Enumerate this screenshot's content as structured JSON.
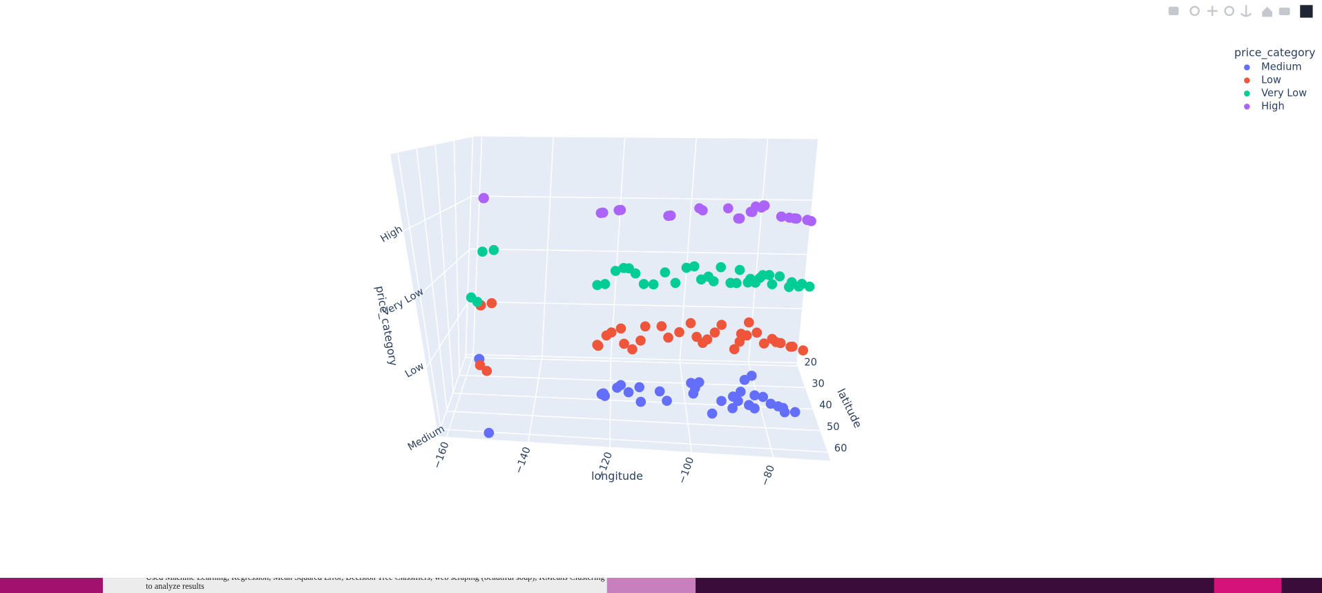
{
  "chart_data": {
    "type": "scatter3d",
    "xaxis_title": "longitude",
    "yaxis_title": "latitude",
    "zaxis_title": "price_category",
    "legend_title": "price_category",
    "xlim": [
      -162,
      -66
    ],
    "xticks": [
      {
        "value": -160,
        "label": "−160"
      },
      {
        "value": -140,
        "label": "−140"
      },
      {
        "value": -120,
        "label": "−120"
      },
      {
        "value": -100,
        "label": "−100"
      },
      {
        "value": -80,
        "label": "−80"
      }
    ],
    "ylim": [
      19,
      64
    ],
    "yticks": [
      20,
      30,
      40,
      50,
      60
    ],
    "zcategories": [
      "Medium",
      "Low",
      "Very Low",
      "High"
    ],
    "series": [
      {
        "name": "Medium",
        "color": "#636efa",
        "x": [
          -157.9,
          -157.8,
          -149.9,
          -122.4,
          -121.9,
          -122.2,
          -121.5,
          -118.2,
          -117.2,
          -115.1,
          -112.1,
          -111.9,
          -104.9,
          -106.6,
          -97.7,
          -96.8,
          -95.4,
          -97.5,
          -93.3,
          -90.2,
          -87.6,
          -86.8,
          -84.4,
          -83.0,
          -81.7,
          -80.2,
          -80.8,
          -78.6,
          -77.0,
          -75.2,
          -74.0,
          -71.1,
          -73.9,
          -82.5,
          -85.7
        ],
        "y": [
          21.3,
          21.4,
          61.2,
          37.8,
          37.3,
          37.5,
          38.6,
          34.1,
          32.7,
          36.2,
          33.4,
          40.8,
          39.7,
          35.1,
          30.3,
          32.8,
          29.8,
          35.5,
          45.0,
          38.6,
          41.9,
          36.2,
          33.7,
          40.0,
          41.5,
          25.8,
          35.2,
          35.8,
          38.9,
          40.0,
          40.7,
          42.4,
          42.7,
          27.9,
          38.3
        ]
      },
      {
        "name": "Low",
        "color": "#EF553B",
        "x": [
          -157.8,
          -157.9,
          -155.1,
          -149.9,
          -147.7,
          -123.0,
          -122.7,
          -121.0,
          -119.8,
          -117.4,
          -116.2,
          -114.0,
          -112.0,
          -110.9,
          -106.5,
          -104.8,
          -101.8,
          -98.5,
          -97.3,
          -95.9,
          -94.6,
          -92.3,
          -90.1,
          -88.0,
          -86.2,
          -85.3,
          -83.9,
          -82.4,
          -81.0,
          -79.9,
          -77.4,
          -76.6,
          -75.5,
          -73.2,
          -72.7,
          -70.3
        ],
        "y": [
          21.3,
          21.4,
          19.7,
          61.2,
          64.8,
          44.9,
          45.5,
          38.7,
          36.7,
          34.0,
          43.6,
          46.9,
          41.2,
          32.2,
          31.8,
          38.8,
          35.2,
          29.4,
          37.7,
          41.3,
          39.1,
          34.7,
          29.9,
          44.5,
          39.8,
          35.0,
          35.9,
          28.0,
          34.0,
          40.4,
          37.5,
          39.3,
          39.8,
          41.8,
          41.7,
          43.7
        ]
      },
      {
        "name": "Very Low",
        "color": "#00cc96",
        "x": [
          -157.8,
          -155.1,
          -149.9,
          -147.7,
          -122.3,
          -120.5,
          -118.9,
          -117.0,
          -115.6,
          -113.6,
          -111.0,
          -108.6,
          -106.0,
          -103.2,
          -100.4,
          -98.3,
          -96.7,
          -94.8,
          -93.6,
          -91.2,
          -89.4,
          -87.9,
          -86.3,
          -85.0,
          -84.1,
          -83.1,
          -81.6,
          -80.6,
          -79.0,
          -78.9,
          -76.3,
          -75.0,
          -73.8,
          -72.5,
          -71.4,
          -69.8
        ],
        "y": [
          21.3,
          19.7,
          61.2,
          64.8,
          47.6,
          46.6,
          35.4,
          32.8,
          33.0,
          37.1,
          45.7,
          45.8,
          35.7,
          44.1,
          31.5,
          30.2,
          40.8,
          38.3,
          42.0,
          30.5,
          43.0,
          43.0,
          32.4,
          42.3,
          39.3,
          42.3,
          38.4,
          36.1,
          43.2,
          35.9,
          36.8,
          45.0,
          41.2,
          44.5,
          42.3,
          44.3
        ]
      },
      {
        "name": "High",
        "color": "#ab63fa",
        "x": [
          -157.8,
          -157.9,
          -122.4,
          -122.1,
          -121.9,
          -118.4,
          -118.3,
          -117.9,
          -105.3,
          -104.9,
          -104.7,
          -97.7,
          -96.8,
          -90.1,
          -88.0,
          -87.7,
          -87.6,
          -84.4,
          -84.0,
          -82.6,
          -81.2,
          -80.1,
          -80.3,
          -77.0,
          -77.1,
          -75.2,
          -74.0,
          -73.9,
          -73.5,
          -71.1,
          -71.0,
          -70.3
        ],
        "y": [
          21.3,
          21.4,
          37.8,
          37.4,
          37.3,
          34.1,
          34.0,
          33.7,
          40.0,
          39.7,
          39.6,
          30.3,
          32.8,
          29.9,
          41.9,
          41.9,
          41.8,
          33.7,
          33.9,
          27.3,
          28.5,
          26.1,
          25.8,
          38.9,
          38.8,
          40.0,
          40.7,
          40.8,
          40.9,
          42.4,
          42.3,
          43.7
        ]
      }
    ]
  },
  "background": {
    "text": [
      "Used Machine Learning, Regression, Mean Squared Error, Decision Tree Classifiers, web scraping (beautiful soup), KMeans Clustering",
      "to analyze results"
    ]
  }
}
